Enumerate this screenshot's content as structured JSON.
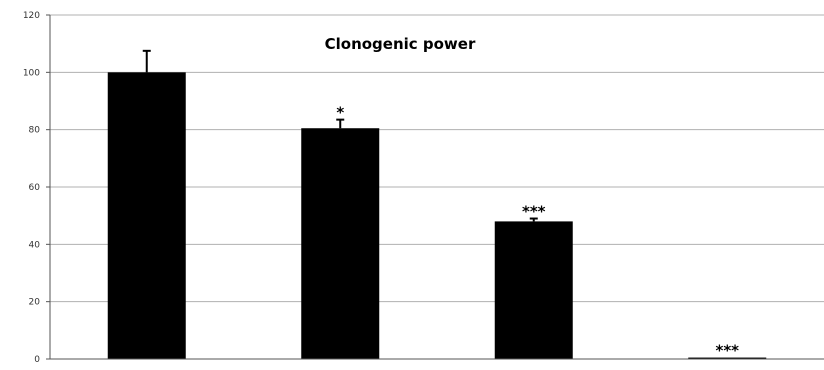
{
  "chart_data": {
    "type": "bar",
    "title": "Clonogenic power",
    "xlabel": "",
    "ylabel": "",
    "categories": [
      "",
      "",
      "",
      ""
    ],
    "values": [
      100,
      80.5,
      48,
      0.5
    ],
    "errors": [
      7.5,
      3,
      1,
      0.3
    ],
    "annotations": [
      "",
      "*",
      "***",
      "***"
    ],
    "ylim": [
      0,
      120
    ],
    "yticks": [
      0,
      20,
      40,
      60,
      80,
      100,
      120
    ],
    "grid": true,
    "legend": "none",
    "bar_color": "#000000",
    "grid_color": "#b0b0b0"
  }
}
